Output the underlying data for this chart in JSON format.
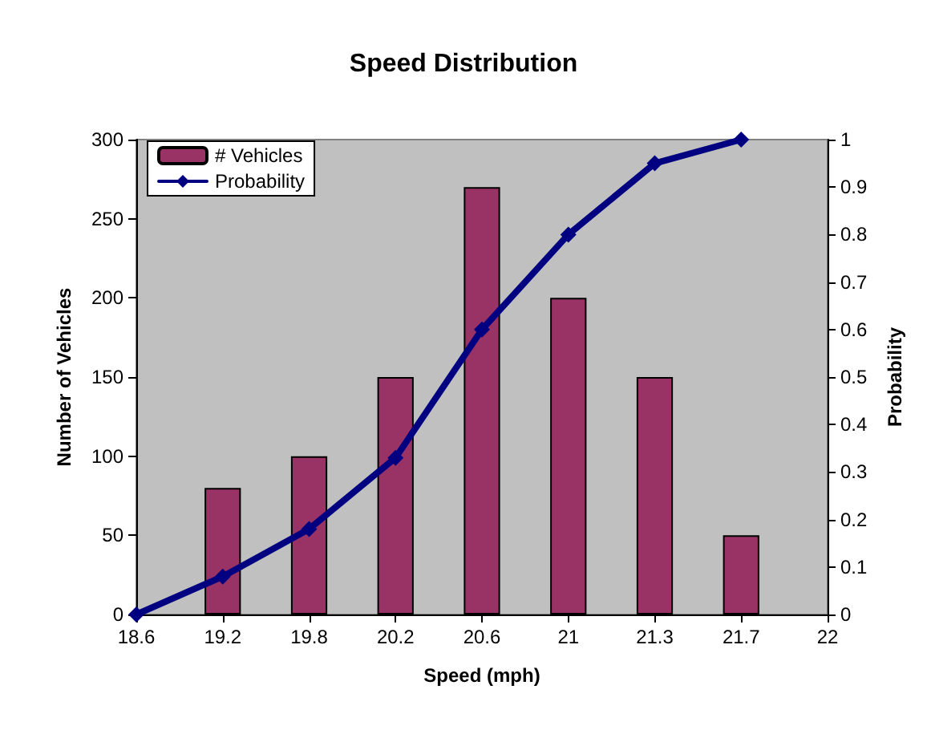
{
  "chart_data": {
    "type": "bar",
    "title": "Speed Distribution",
    "xlabel": "Speed (mph)",
    "ylabel": "Number of Vehicles",
    "y2label": "Probability",
    "categories": [
      "18.6",
      "19.2",
      "19.8",
      "20.2",
      "20.6",
      "21",
      "21.3",
      "21.7",
      "22"
    ],
    "series": [
      {
        "name": "# Vehicles",
        "color": "#993366",
        "values": [
          null,
          80,
          100,
          150,
          270,
          200,
          150,
          50,
          null
        ]
      },
      {
        "name": "Probability",
        "type": "line",
        "axis": "y2",
        "color": "#000080",
        "marker": "diamond",
        "line_style": "solid",
        "values": [
          0,
          0.08,
          0.18,
          0.33,
          0.6,
          0.8,
          0.95,
          1,
          null
        ]
      }
    ],
    "ylim": [
      0,
      300
    ],
    "yticks": [
      0,
      50,
      100,
      150,
      200,
      250,
      300
    ],
    "y2lim": [
      0,
      1
    ],
    "y2ticks": [
      0,
      0.1,
      0.2,
      0.3,
      0.4,
      0.5,
      0.6,
      0.7,
      0.8,
      0.9,
      1
    ],
    "grid": false,
    "legend": "top left"
  }
}
